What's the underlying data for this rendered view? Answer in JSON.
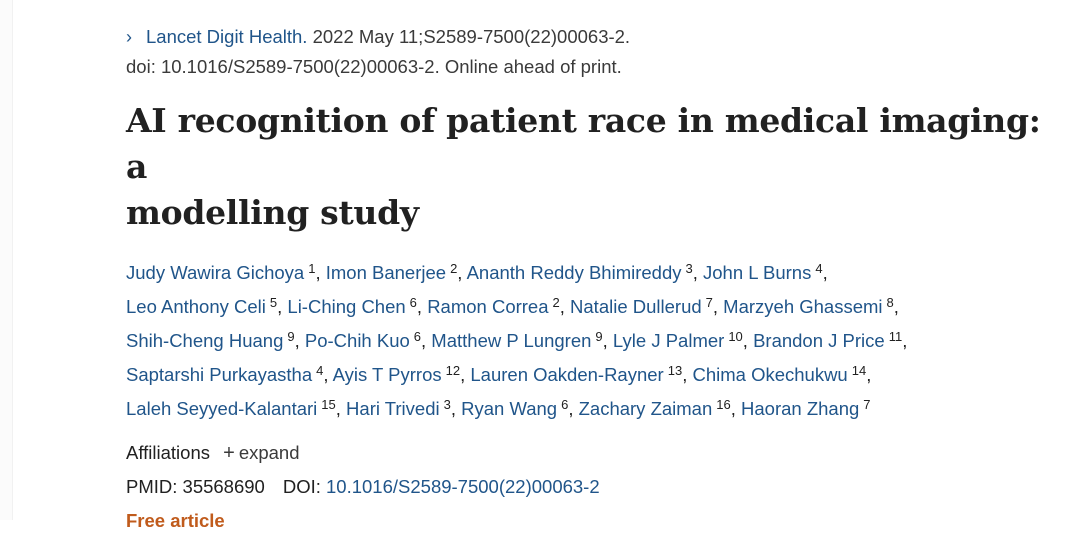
{
  "citation": {
    "chevron_icon": "chevron-right-icon",
    "journal": "Lancet Digit Health.",
    "details": "2022 May 11;S2589-7500(22)00063-2.",
    "doi_line": "doi: 10.1016/S2589-7500(22)00063-2. Online ahead of print."
  },
  "title_line1": "AI recognition of patient race in medical imaging: a",
  "title_line2": "modelling study",
  "authors": [
    {
      "name": "Judy Wawira Gichoya",
      "aff": "1"
    },
    {
      "name": "Imon Banerjee",
      "aff": "2"
    },
    {
      "name": "Ananth Reddy Bhimireddy",
      "aff": "3"
    },
    {
      "name": "John L Burns",
      "aff": "4"
    },
    {
      "name": "Leo Anthony Celi",
      "aff": "5"
    },
    {
      "name": "Li-Ching Chen",
      "aff": "6"
    },
    {
      "name": "Ramon Correa",
      "aff": "2"
    },
    {
      "name": "Natalie Dullerud",
      "aff": "7"
    },
    {
      "name": "Marzyeh Ghassemi",
      "aff": "8"
    },
    {
      "name": "Shih-Cheng Huang",
      "aff": "9"
    },
    {
      "name": "Po-Chih Kuo",
      "aff": "6"
    },
    {
      "name": "Matthew P Lungren",
      "aff": "9"
    },
    {
      "name": "Lyle J Palmer",
      "aff": "10"
    },
    {
      "name": "Brandon J Price",
      "aff": "11"
    },
    {
      "name": "Saptarshi Purkayastha",
      "aff": "4"
    },
    {
      "name": "Ayis T Pyrros",
      "aff": "12"
    },
    {
      "name": "Lauren Oakden-Rayner",
      "aff": "13"
    },
    {
      "name": "Chima Okechukwu",
      "aff": "14"
    },
    {
      "name": "Laleh Seyyed-Kalantari",
      "aff": "15"
    },
    {
      "name": "Hari Trivedi",
      "aff": "3"
    },
    {
      "name": "Ryan Wang",
      "aff": "6"
    },
    {
      "name": "Zachary Zaiman",
      "aff": "16"
    },
    {
      "name": "Haoran Zhang",
      "aff": "7"
    }
  ],
  "affiliations": {
    "label": "Affiliations",
    "expand_icon": "plus-icon",
    "expand_label": "expand"
  },
  "identifiers": {
    "pmid_label": "PMID:",
    "pmid": "35568690",
    "doi_label": "DOI:",
    "doi": "10.1016/S2589-7500(22)00063-2"
  },
  "free_article_label": "Free article",
  "colors": {
    "link": "#20558a",
    "free_article": "#c05b1c",
    "text": "#212121"
  }
}
